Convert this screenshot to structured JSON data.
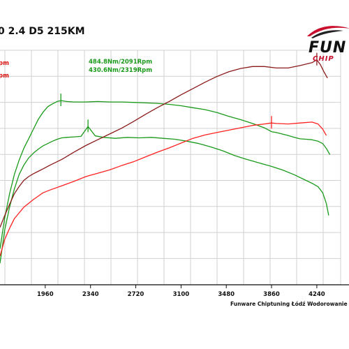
{
  "title": "0 2.4 D5 215KM",
  "logo": {
    "main": "FUN",
    "sub": "CHIP"
  },
  "footer": "Funware Chiptuning Łódź Wodorowanie Tel",
  "annotations": {
    "torque_tuned": "484.8Nm/2091Rpm",
    "torque_stock": "430.6Nm/2319Rpm",
    "left_top": "pm",
    "left_second": "pm"
  },
  "colors": {
    "torque": "#1a9a1a",
    "power_tuned": "#8b1a1a",
    "power_stock": "#ff2020",
    "grid": "#d0d0d0",
    "axis": "#111111"
  },
  "chart_data": {
    "type": "line",
    "x_ticks": [
      1960,
      2340,
      2720,
      3100,
      3480,
      3860,
      4240
    ],
    "series": [
      {
        "key": "torque_tuned",
        "color": "#1a9a1a",
        "points": [
          [
            1580,
            175
          ],
          [
            1620,
            240
          ],
          [
            1660,
            290
          ],
          [
            1700,
            330
          ],
          [
            1740,
            360
          ],
          [
            1780,
            385
          ],
          [
            1820,
            405
          ],
          [
            1860,
            425
          ],
          [
            1900,
            445
          ],
          [
            1940,
            460
          ],
          [
            1980,
            472
          ],
          [
            2020,
            478
          ],
          [
            2060,
            483
          ],
          [
            2091,
            484.8
          ],
          [
            2140,
            483
          ],
          [
            2200,
            482
          ],
          [
            2300,
            482
          ],
          [
            2400,
            483
          ],
          [
            2500,
            482
          ],
          [
            2600,
            482
          ],
          [
            2700,
            481
          ],
          [
            2800,
            480
          ],
          [
            2900,
            479
          ],
          [
            3000,
            477
          ],
          [
            3100,
            474
          ],
          [
            3200,
            470
          ],
          [
            3300,
            466
          ],
          [
            3400,
            460
          ],
          [
            3500,
            452
          ],
          [
            3600,
            445
          ],
          [
            3700,
            437
          ],
          [
            3800,
            428
          ],
          [
            3860,
            420
          ],
          [
            3900,
            418
          ],
          [
            3950,
            415
          ],
          [
            4000,
            412
          ],
          [
            4050,
            408
          ],
          [
            4100,
            405
          ],
          [
            4150,
            404
          ],
          [
            4200,
            403
          ],
          [
            4250,
            400
          ],
          [
            4290,
            395
          ],
          [
            4320,
            385
          ],
          [
            4350,
            372
          ]
        ]
      },
      {
        "key": "torque_stock",
        "color": "#1a9a1a",
        "points": [
          [
            1580,
            145
          ],
          [
            1620,
            215
          ],
          [
            1660,
            262
          ],
          [
            1700,
            300
          ],
          [
            1740,
            330
          ],
          [
            1780,
            350
          ],
          [
            1820,
            365
          ],
          [
            1860,
            375
          ],
          [
            1900,
            383
          ],
          [
            1940,
            390
          ],
          [
            1980,
            395
          ],
          [
            2020,
            400
          ],
          [
            2060,
            404
          ],
          [
            2100,
            407
          ],
          [
            2140,
            408
          ],
          [
            2200,
            409
          ],
          [
            2260,
            410
          ],
          [
            2319,
            430.6
          ],
          [
            2380,
            411
          ],
          [
            2450,
            408
          ],
          [
            2550,
            406
          ],
          [
            2650,
            408
          ],
          [
            2750,
            407
          ],
          [
            2850,
            408
          ],
          [
            2950,
            406
          ],
          [
            3050,
            404
          ],
          [
            3150,
            400
          ],
          [
            3250,
            395
          ],
          [
            3350,
            388
          ],
          [
            3450,
            380
          ],
          [
            3550,
            370
          ],
          [
            3650,
            362
          ],
          [
            3750,
            355
          ],
          [
            3850,
            348
          ],
          [
            3950,
            340
          ],
          [
            4050,
            330
          ],
          [
            4150,
            318
          ],
          [
            4200,
            312
          ],
          [
            4250,
            305
          ],
          [
            4290,
            292
          ],
          [
            4320,
            270
          ],
          [
            4340,
            245
          ]
        ]
      },
      {
        "key": "power_tuned",
        "color": "#8b1a1a",
        "points": [
          [
            1580,
            220
          ],
          [
            1620,
            245
          ],
          [
            1660,
            268
          ],
          [
            1700,
            290
          ],
          [
            1740,
            305
          ],
          [
            1780,
            318
          ],
          [
            1820,
            326
          ],
          [
            1860,
            332
          ],
          [
            1900,
            337
          ],
          [
            1940,
            342
          ],
          [
            2000,
            350
          ],
          [
            2100,
            362
          ],
          [
            2200,
            377
          ],
          [
            2300,
            391
          ],
          [
            2400,
            403
          ],
          [
            2500,
            415
          ],
          [
            2600,
            427
          ],
          [
            2700,
            441
          ],
          [
            2800,
            456
          ],
          [
            2900,
            470
          ],
          [
            3000,
            483
          ],
          [
            3100,
            497
          ],
          [
            3200,
            510
          ],
          [
            3300,
            523
          ],
          [
            3400,
            535
          ],
          [
            3500,
            545
          ],
          [
            3600,
            552
          ],
          [
            3700,
            556
          ],
          [
            3800,
            556
          ],
          [
            3900,
            553
          ],
          [
            4000,
            553
          ],
          [
            4100,
            558
          ],
          [
            4200,
            564
          ],
          [
            4240,
            570
          ],
          [
            4270,
            560
          ],
          [
            4300,
            545
          ],
          [
            4330,
            532
          ]
        ]
      },
      {
        "key": "power_stock",
        "color": "#ff2020",
        "points": [
          [
            1580,
            160
          ],
          [
            1620,
            195
          ],
          [
            1660,
            218
          ],
          [
            1700,
            238
          ],
          [
            1740,
            250
          ],
          [
            1780,
            262
          ],
          [
            1820,
            270
          ],
          [
            1860,
            278
          ],
          [
            1900,
            285
          ],
          [
            1940,
            292
          ],
          [
            2000,
            298
          ],
          [
            2100,
            307
          ],
          [
            2200,
            316
          ],
          [
            2300,
            326
          ],
          [
            2400,
            333
          ],
          [
            2500,
            340
          ],
          [
            2600,
            349
          ],
          [
            2700,
            357
          ],
          [
            2800,
            367
          ],
          [
            2900,
            377
          ],
          [
            3000,
            386
          ],
          [
            3100,
            396
          ],
          [
            3200,
            406
          ],
          [
            3300,
            413
          ],
          [
            3400,
            418
          ],
          [
            3500,
            423
          ],
          [
            3600,
            428
          ],
          [
            3700,
            433
          ],
          [
            3800,
            436
          ],
          [
            3860,
            438
          ],
          [
            3900,
            437
          ],
          [
            4000,
            436
          ],
          [
            4100,
            438
          ],
          [
            4200,
            440
          ],
          [
            4250,
            436
          ],
          [
            4290,
            425
          ],
          [
            4320,
            412
          ]
        ]
      }
    ],
    "markers": [
      {
        "series": "torque_tuned",
        "x": 2091,
        "y": 484.8
      },
      {
        "series": "torque_stock",
        "x": 2319,
        "y": 430.6
      },
      {
        "series": "power_tuned",
        "x": 4240,
        "y": 570
      },
      {
        "series": "power_stock",
        "x": 3860,
        "y": 438
      }
    ]
  }
}
